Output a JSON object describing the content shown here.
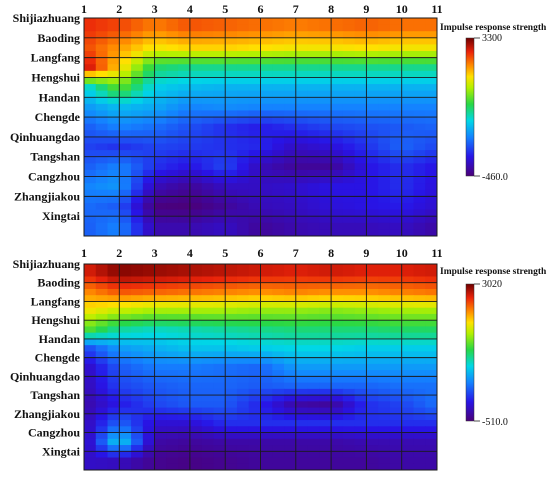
{
  "chart_data": [
    {
      "type": "heatmap",
      "x": [
        "1",
        "2",
        "3",
        "4",
        "5",
        "6",
        "7",
        "8",
        "9",
        "10",
        "11"
      ],
      "y": [
        "Shijiazhuang",
        "Baoding",
        "Langfang",
        "Hengshui",
        "Handan",
        "Chengde",
        "Qinhuangdao",
        "Tangshan",
        "Cangzhou",
        "Zhangjiakou",
        "Xingtai"
      ],
      "colorbar": {
        "title": "Impulse response strength",
        "max": "3300",
        "min": "-460.0",
        "vmax": 3300,
        "vmin": -460
      },
      "grid": true,
      "z": [
        [
          2900,
          2800,
          2600,
          2750,
          2700,
          2650,
          2600,
          2650,
          2700,
          2650,
          2650
        ],
        [
          2800,
          2500,
          2200,
          2300,
          2300,
          2250,
          2200,
          2200,
          2250,
          2200,
          2200
        ],
        [
          3100,
          2300,
          1400,
          1300,
          1300,
          1300,
          1300,
          1300,
          1300,
          1300,
          1300
        ],
        [
          1000,
          1700,
          1000,
          900,
          850,
          850,
          850,
          850,
          850,
          850,
          850
        ],
        [
          700,
          900,
          800,
          600,
          650,
          600,
          600,
          600,
          600,
          600,
          600
        ],
        [
          400,
          600,
          500,
          350,
          200,
          100,
          200,
          300,
          350,
          400,
          450
        ],
        [
          300,
          200,
          300,
          250,
          200,
          150,
          -100,
          0,
          200,
          450,
          300
        ],
        [
          400,
          600,
          200,
          50,
          300,
          -150,
          -300,
          -300,
          50,
          200,
          50
        ],
        [
          600,
          700,
          -150,
          -300,
          -100,
          -100,
          -50,
          50,
          50,
          200,
          0
        ],
        [
          500,
          400,
          -420,
          -450,
          -300,
          -150,
          -100,
          0,
          50,
          100,
          -50
        ],
        [
          400,
          600,
          -200,
          -200,
          -100,
          -300,
          -200,
          -150,
          -150,
          -100,
          -250
        ]
      ]
    },
    {
      "type": "heatmap",
      "x": [
        "1",
        "2",
        "3",
        "4",
        "5",
        "6",
        "7",
        "8",
        "9",
        "10",
        "11"
      ],
      "y": [
        "Shijiazhuang",
        "Baoding",
        "Langfang",
        "Hengshui",
        "Handan",
        "Chengde",
        "Qinhuangdao",
        "Tangshan",
        "Zhangjiakou",
        "Cangzhou",
        "Xingtai"
      ],
      "colorbar": {
        "title": "Impulse response strength",
        "max": "3020",
        "min": "-510.0",
        "vmax": 3020,
        "vmin": -510
      },
      "grid": true,
      "z": [
        [
          2700,
          2950,
          2900,
          2850,
          2800,
          2750,
          2700,
          2750,
          2700,
          2700,
          2750
        ],
        [
          2300,
          2500,
          2450,
          2400,
          2350,
          2300,
          2350,
          2300,
          2300,
          2350,
          2400
        ],
        [
          2000,
          1800,
          1700,
          1700,
          1700,
          1650,
          1650,
          1600,
          1650,
          1700,
          1700
        ],
        [
          1500,
          1100,
          1000,
          1050,
          1100,
          1150,
          1200,
          1200,
          1200,
          1250,
          1250
        ],
        [
          200,
          600,
          700,
          800,
          800,
          850,
          900,
          900,
          850,
          850,
          850
        ],
        [
          -200,
          300,
          450,
          450,
          400,
          350,
          600,
          600,
          600,
          600,
          600
        ],
        [
          -250,
          200,
          300,
          350,
          350,
          300,
          350,
          350,
          350,
          400,
          400
        ],
        [
          -300,
          0,
          200,
          300,
          300,
          50,
          -300,
          -350,
          100,
          200,
          400
        ],
        [
          -250,
          350,
          -100,
          -100,
          100,
          100,
          100,
          100,
          100,
          100,
          100
        ],
        [
          -300,
          900,
          -300,
          -350,
          -300,
          -300,
          -300,
          -300,
          -250,
          -250,
          -250
        ],
        [
          -150,
          -200,
          -400,
          -450,
          -400,
          -350,
          -350,
          -350,
          -350,
          -300,
          -300
        ]
      ]
    }
  ]
}
